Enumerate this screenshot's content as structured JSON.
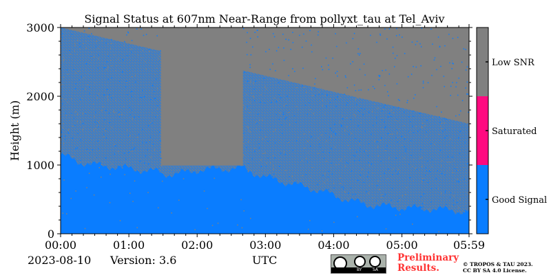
{
  "chart_data": {
    "type": "heatmap",
    "title": "Signal Status at 607nm Near-Range from pollyxt_tau at Tel_Aviv",
    "xlabel": "",
    "ylabel": "Height (m)",
    "x_tick_labels": [
      "00:00",
      "01:00",
      "02:00",
      "03:00",
      "04:00",
      "05:00",
      "05:59"
    ],
    "y_tick_labels": [
      "0",
      "1000",
      "2000",
      "3000"
    ],
    "x_range_hours": [
      0,
      5.983
    ],
    "ylim": [
      0,
      3000
    ],
    "y_major_ticks": [
      0,
      1000,
      2000,
      3000
    ],
    "y_minor_step": 200,
    "grid": false,
    "colorbar": {
      "categories": [
        {
          "label": "Good Signal",
          "color": "#0a7dff"
        },
        {
          "label": "Saturated",
          "color": "#ff0a80"
        },
        {
          "label": "Low SNR",
          "color": "#808080"
        }
      ]
    },
    "good_signal_top_profile": {
      "time_hours": [
        0.0,
        0.25,
        0.5,
        0.75,
        1.0,
        1.25,
        1.45,
        1.5,
        1.6,
        1.75,
        1.9,
        2.0,
        2.25,
        2.5,
        2.65,
        2.75,
        3.0,
        3.25,
        3.5,
        3.75,
        4.0,
        4.25,
        4.5,
        4.75,
        5.0,
        5.25,
        5.5,
        5.75,
        5.983
      ],
      "height_m": [
        1150,
        1050,
        1000,
        980,
        950,
        920,
        900,
        860,
        870,
        880,
        900,
        930,
        940,
        950,
        960,
        920,
        820,
        760,
        700,
        640,
        560,
        480,
        420,
        400,
        380,
        370,
        360,
        340,
        320
      ]
    },
    "low_snr_block": {
      "start_hours": 1.47,
      "end_hours": 2.67
    }
  },
  "footer": {
    "date": "2023-08-10",
    "version": "Version: 3.6",
    "utc": "UTC",
    "preliminary": "Preliminary\nResults.",
    "copyright": "© TROPOS & TAU 2023.\nCC BY SA 4.0 License.",
    "cc_by": "BY",
    "cc_sa": "SA"
  }
}
